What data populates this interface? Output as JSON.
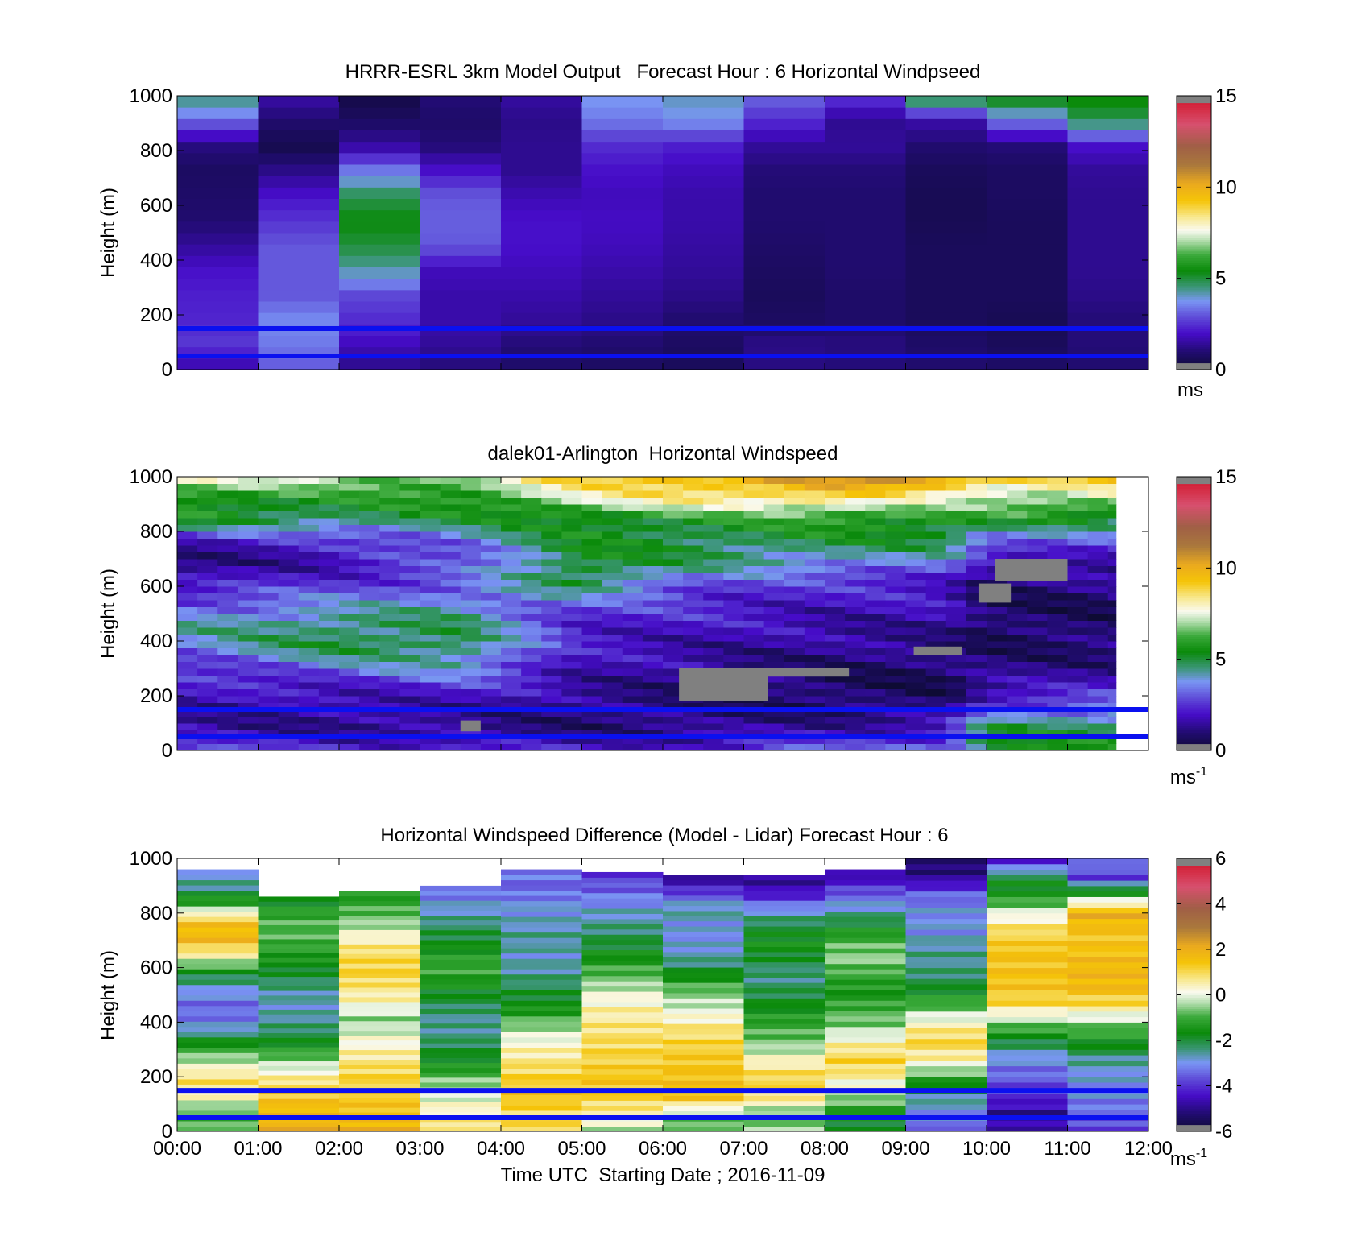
{
  "chart_data": [
    {
      "type": "heatmap",
      "title": "HRRR-ESRL 3km Model Output   Forecast Hour : 6 Horizontal Windpseed",
      "ylabel": "Height (m)",
      "ylim": [
        0,
        1000
      ],
      "yticks": [
        "0",
        "200",
        "400",
        "600",
        "800",
        "1000"
      ],
      "xlim": [
        "00:00",
        "12:00"
      ],
      "colorbar": {
        "ticks": [
          "0",
          "5",
          "10",
          "15"
        ],
        "range": [
          0,
          15
        ],
        "unit": "ms",
        "unit_superscript": ""
      },
      "reference_lines_m": [
        150,
        50
      ],
      "columns_hours": 12,
      "rows_bottom_to_top": [
        [
          1.5,
          3.0,
          1.2,
          1.0,
          0.8,
          0.7,
          0.6,
          1.1,
          1.0,
          0.9,
          0.8,
          0.9
        ],
        [
          2.6,
          3.4,
          1.8,
          1.4,
          1.0,
          0.9,
          0.7,
          1.2,
          1.1,
          0.8,
          0.6,
          1.0
        ],
        [
          2.3,
          3.6,
          2.4,
          1.6,
          1.4,
          1.2,
          0.9,
          0.7,
          0.8,
          0.6,
          0.5,
          1.0
        ],
        [
          2.2,
          3.0,
          2.8,
          1.6,
          1.6,
          1.4,
          1.2,
          0.6,
          0.8,
          0.6,
          0.6,
          1.2
        ],
        [
          2.0,
          3.0,
          4.2,
          1.8,
          1.8,
          1.6,
          1.4,
          0.7,
          0.9,
          0.6,
          0.6,
          1.3
        ],
        [
          1.4,
          3.0,
          5.0,
          3.0,
          2.0,
          1.8,
          1.5,
          0.8,
          0.9,
          0.6,
          0.6,
          1.3
        ],
        [
          0.9,
          2.5,
          5.4,
          3.1,
          2.0,
          1.9,
          1.6,
          0.9,
          0.9,
          0.5,
          0.6,
          1.3
        ],
        [
          0.8,
          2.0,
          4.8,
          3.0,
          1.7,
          1.8,
          1.6,
          0.9,
          0.9,
          0.5,
          0.7,
          1.3
        ],
        [
          0.7,
          1.2,
          3.4,
          2.0,
          1.3,
          2.0,
          1.8,
          1.0,
          1.0,
          0.6,
          0.7,
          1.4
        ],
        [
          1.1,
          0.4,
          1.5,
          1.0,
          1.3,
          2.4,
          2.2,
          1.4,
          1.4,
          0.9,
          1.0,
          2.0
        ],
        [
          3.2,
          0.9,
          0.7,
          0.8,
          1.2,
          3.4,
          3.7,
          2.4,
          1.3,
          1.6,
          3.4,
          4.8
        ],
        [
          4.6,
          1.6,
          0.3,
          1.0,
          1.5,
          3.8,
          4.1,
          3.2,
          2.6,
          5.4,
          5.6,
          5.6
        ]
      ]
    },
    {
      "type": "heatmap",
      "title": "dalek01-Arlington  Horizontal Windspeed",
      "ylabel": "Height (m)",
      "ylim": [
        0,
        1000
      ],
      "yticks": [
        "0",
        "200",
        "400",
        "600",
        "800",
        "1000"
      ],
      "xlim": [
        "00:00",
        "12:00"
      ],
      "data_end_hours": 11.6,
      "colorbar": {
        "ticks": [
          "0",
          "5",
          "10",
          "15"
        ],
        "range": [
          0,
          15
        ],
        "unit": "ms",
        "unit_superscript": "-1"
      },
      "reference_lines_m": [
        150,
        50
      ],
      "keyframes_rows_bottom_to_top": [
        {
          "t": 0,
          "v": [
            2.6,
            1.5,
            1.6,
            2.0,
            2.5,
            3.5,
            4.0,
            3.0,
            1.8,
            0.8,
            2.0,
            5.5,
            6.0,
            8.0
          ]
        },
        {
          "t": 2,
          "v": [
            2.5,
            1.3,
            1.4,
            2.0,
            3.5,
            5.0,
            4.8,
            3.5,
            2.5,
            1.8,
            2.4,
            4.8,
            5.5,
            7.0
          ]
        },
        {
          "t": 3.5,
          "v": [
            2.3,
            1.2,
            1.5,
            2.5,
            4.0,
            5.0,
            4.5,
            4.0,
            3.0,
            2.8,
            3.5,
            5.0,
            6.0,
            7.0
          ]
        },
        {
          "t": 5,
          "v": [
            2.0,
            1.0,
            1.1,
            1.4,
            1.8,
            2.0,
            2.3,
            3.0,
            5.0,
            5.5,
            5.2,
            5.6,
            7.5,
            9.0
          ]
        },
        {
          "t": 6.5,
          "v": [
            2.3,
            1.2,
            0.9,
            1.0,
            1.4,
            1.6,
            2.0,
            2.4,
            3.0,
            4.5,
            5.0,
            5.5,
            8.5,
            10.0
          ]
        },
        {
          "t": 8,
          "v": [
            3.0,
            1.6,
            0.8,
            0.7,
            0.9,
            1.3,
            1.6,
            2.0,
            2.5,
            4.0,
            5.0,
            6.0,
            9.0,
            10.5
          ]
        },
        {
          "t": 9.5,
          "v": [
            3.5,
            2.0,
            1.0,
            0.6,
            0.8,
            1.2,
            1.5,
            1.8,
            2.2,
            3.5,
            5.0,
            6.0,
            7.0,
            11.0
          ]
        },
        {
          "t": 10,
          "v": [
            5.5,
            5.0,
            3.0,
            1.6,
            1.0,
            0.8,
            0.6,
            0.7,
            1.0,
            1.6,
            3.5,
            5.5,
            7.0,
            9.5
          ]
        },
        {
          "t": 11.6,
          "v": [
            5.5,
            5.0,
            3.5,
            2.0,
            1.2,
            0.9,
            0.8,
            0.8,
            1.2,
            1.8,
            3.0,
            5.0,
            7.5,
            9.0
          ]
        }
      ],
      "missing_data": [
        {
          "t0": 6.2,
          "t1": 7.3,
          "h0": 180,
          "h1": 300
        },
        {
          "t0": 7.3,
          "t1": 8.3,
          "h0": 270,
          "h1": 300
        },
        {
          "t0": 9.1,
          "t1": 9.7,
          "h0": 350,
          "h1": 380
        },
        {
          "t0": 9.9,
          "t1": 10.3,
          "h0": 540,
          "h1": 610
        },
        {
          "t0": 10.1,
          "t1": 11.0,
          "h0": 620,
          "h1": 700
        },
        {
          "t0": 3.5,
          "t1": 3.75,
          "h0": 70,
          "h1": 110
        }
      ]
    },
    {
      "type": "heatmap",
      "title": "Horizontal Windspeed Difference (Model - Lidar) Forecast Hour : 6",
      "xlabel": "Time UTC  Starting Date ; 2016-11-09",
      "ylabel": "Height (m)",
      "ylim": [
        0,
        1000
      ],
      "yticks": [
        "0",
        "200",
        "400",
        "600",
        "800",
        "1000"
      ],
      "xticks": [
        "00:00",
        "01:00",
        "02:00",
        "03:00",
        "04:00",
        "05:00",
        "06:00",
        "07:00",
        "08:00",
        "09:00",
        "10:00",
        "11:00",
        "12:00"
      ],
      "colorbar": {
        "ticks": [
          "-6",
          "-4",
          "-2",
          "0",
          "2",
          "4",
          "6"
        ],
        "range": [
          -6,
          6
        ],
        "unit": "ms",
        "unit_superscript": "-1"
      },
      "reference_lines_m": [
        150,
        50
      ],
      "column_top_m": [
        960,
        860,
        880,
        900,
        960,
        950,
        940,
        940,
        960,
        1000,
        1000,
        1000
      ],
      "columns_bottom_to_top": [
        [
          -0.8,
          -1.0,
          0.3,
          1.0,
          -0.2,
          -1.5,
          -3.0,
          -3.5,
          -3.0,
          -2.0,
          0.3,
          1.8,
          1.5,
          -1.0,
          -2.5,
          -3.0
        ],
        [
          2.0,
          1.8,
          1.5,
          1.0,
          0.0,
          -1.0,
          -2.0,
          -2.5,
          -2.8,
          -2.5,
          -2.0,
          -1.5,
          -1.0,
          -0.8,
          -1.2,
          -2.0
        ],
        [
          2.0,
          1.6,
          1.4,
          1.2,
          1.0,
          0.5,
          0.0,
          -0.5,
          0.3,
          0.8,
          1.2,
          1.0,
          0.5,
          -0.5,
          -1.0,
          -1.5
        ],
        [
          1.0,
          0.5,
          0.0,
          -0.5,
          -1.5,
          -2.0,
          -2.5,
          -2.5,
          -2.0,
          -1.5,
          -1.0,
          -1.5,
          -2.0,
          -2.5,
          -3.0,
          -3.5
        ],
        [
          1.2,
          1.0,
          1.5,
          1.2,
          0.8,
          0.3,
          -0.5,
          -1.5,
          -2.0,
          -2.5,
          -2.8,
          -2.5,
          -2.8,
          -3.0,
          -3.5,
          -3.2
        ],
        [
          -0.5,
          0.5,
          1.2,
          1.5,
          1.2,
          1.0,
          0.8,
          0.5,
          0.0,
          -0.8,
          -1.5,
          -2.0,
          -2.5,
          -3.0,
          -3.5,
          -4.0
        ],
        [
          -1.0,
          -0.5,
          1.5,
          1.6,
          1.4,
          1.2,
          0.8,
          0.0,
          -0.5,
          -1.5,
          -2.5,
          -3.0,
          -3.0,
          -2.5,
          -4.0,
          -5.0
        ],
        [
          -0.5,
          -0.8,
          0.8,
          1.2,
          0.5,
          -0.5,
          -1.0,
          -1.5,
          -2.0,
          -2.5,
          -2.0,
          -1.5,
          -2.0,
          -3.0,
          -4.5,
          -5.0
        ],
        [
          -2.0,
          -1.5,
          -0.5,
          0.5,
          1.2,
          0.5,
          -0.5,
          -1.0,
          -1.5,
          -1.0,
          -0.5,
          -1.0,
          -2.0,
          -3.0,
          -4.0,
          -5.0
        ],
        [
          -3.5,
          -3.0,
          -2.5,
          -1.0,
          0.5,
          1.2,
          0.3,
          -1.0,
          -2.0,
          -2.5,
          -2.5,
          -3.0,
          -3.0,
          -3.5,
          -5.0,
          -5.5
        ],
        [
          -4.5,
          -5.0,
          -4.0,
          -3.5,
          -3.0,
          -2.0,
          -0.5,
          1.0,
          1.5,
          1.5,
          1.5,
          1.0,
          0.0,
          -1.5,
          -2.0,
          -4.5
        ],
        [
          -4.0,
          -3.5,
          -3.0,
          -3.0,
          -2.5,
          -1.5,
          -0.5,
          1.0,
          1.8,
          1.8,
          1.5,
          1.5,
          2.0,
          -1.0,
          -4.0,
          -3.0
        ]
      ]
    }
  ]
}
